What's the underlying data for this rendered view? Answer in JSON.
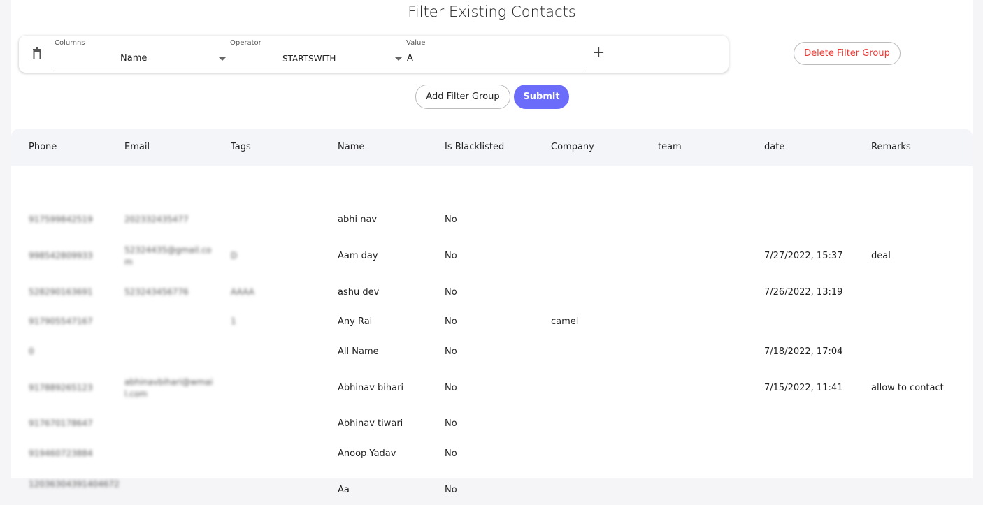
{
  "title": "Filter Existing Contacts",
  "filter": {
    "columns_label": "Columns",
    "columns_value": "Name",
    "operator_label": "Operator",
    "operator_value": "STARTSWITH",
    "value_label": "Value",
    "value": "A"
  },
  "buttons": {
    "delete_group": "Delete Filter Group",
    "add_group": "Add Filter Group",
    "submit": "Submit"
  },
  "colors": {
    "accent": "#6c6cfb",
    "danger": "#e53935"
  },
  "table": {
    "headers": [
      "Phone",
      "Email",
      "Tags",
      "Name",
      "Is Blacklisted",
      "Company",
      "team",
      "date",
      "Remarks"
    ],
    "rows": [
      [
        "917599842519",
        "202332435477",
        "",
        "abhi nav",
        "No",
        "",
        "",
        "",
        ""
      ],
      [
        "998542809933",
        "52324435@gmail.com",
        "D",
        "Aam day",
        "No",
        "",
        "",
        "7/27/2022, 15:37",
        "deal"
      ],
      [
        "528290163691",
        "523243456776",
        "AAAA",
        "ashu dev",
        "No",
        "",
        "",
        "7/26/2022, 13:19",
        ""
      ],
      [
        "917905547167",
        "",
        "1",
        "Any Rai",
        "No",
        "camel",
        "",
        "",
        ""
      ],
      [
        "0",
        "",
        "",
        "All Name",
        "No",
        "",
        "",
        "7/18/2022, 17:04",
        ""
      ],
      [
        "917889265123",
        "abhinavbihari@wmail.com",
        "",
        "Abhinav bihari",
        "No",
        "",
        "",
        "7/15/2022, 11:41",
        "allow to contact"
      ],
      [
        "917670178647",
        "",
        "",
        "Abhinav tiwari",
        "No",
        "",
        "",
        "",
        ""
      ],
      [
        "919460723884",
        "",
        "",
        "Anoop Yadav",
        "No",
        "",
        "",
        "",
        ""
      ],
      [
        "12036304391404672",
        "",
        "",
        "Aa",
        "No",
        "",
        "",
        "",
        ""
      ]
    ]
  }
}
